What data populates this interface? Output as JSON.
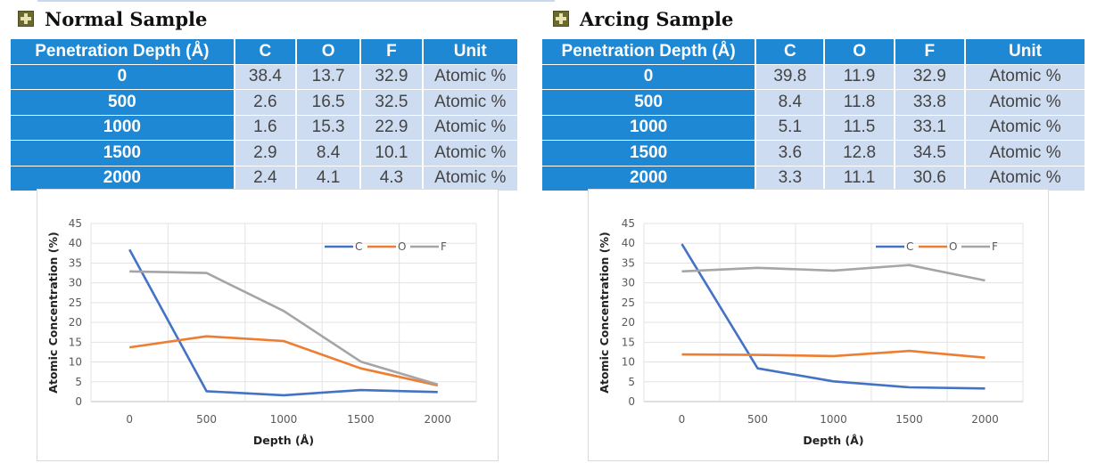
{
  "panels": [
    {
      "title": "Normal Sample",
      "table": {
        "headers": [
          "Penetration Depth (Å)",
          "C",
          "O",
          "F",
          "Unit"
        ],
        "rows": [
          [
            "0",
            "38.4",
            "13.7",
            "32.9",
            "Atomic %"
          ],
          [
            "500",
            "2.6",
            "16.5",
            "32.5",
            "Atomic %"
          ],
          [
            "1000",
            "1.6",
            "15.3",
            "22.9",
            "Atomic %"
          ],
          [
            "1500",
            "2.9",
            "8.4",
            "10.1",
            "Atomic %"
          ],
          [
            "2000",
            "2.4",
            "4.1",
            "4.3",
            "Atomic %"
          ]
        ]
      }
    },
    {
      "title": "Arcing Sample",
      "table": {
        "headers": [
          "Penetration Depth (Å)",
          "C",
          "O",
          "F",
          "Unit"
        ],
        "rows": [
          [
            "0",
            "39.8",
            "11.9",
            "32.9",
            "Atomic %"
          ],
          [
            "500",
            "8.4",
            "11.8",
            "33.8",
            "Atomic %"
          ],
          [
            "1000",
            "5.1",
            "11.5",
            "33.1",
            "Atomic %"
          ],
          [
            "1500",
            "3.6",
            "12.8",
            "34.5",
            "Atomic %"
          ],
          [
            "2000",
            "3.3",
            "11.1",
            "30.6",
            "Atomic %"
          ]
        ]
      }
    }
  ],
  "chart_data": [
    {
      "type": "line",
      "title": "",
      "xlabel": "Depth (Å)",
      "ylabel": "Atomic Concentration (%)",
      "x": [
        0,
        500,
        1000,
        1500,
        2000
      ],
      "ylim": [
        0,
        45
      ],
      "yticks": [
        0,
        5,
        10,
        15,
        20,
        25,
        30,
        35,
        40,
        45
      ],
      "grid": true,
      "legend_position": "top-right",
      "series": [
        {
          "name": "C",
          "color": "#4472c4",
          "values": [
            38.4,
            2.6,
            1.6,
            2.9,
            2.4
          ]
        },
        {
          "name": "O",
          "color": "#ed7d31",
          "values": [
            13.7,
            16.5,
            15.3,
            8.4,
            4.1
          ]
        },
        {
          "name": "F",
          "color": "#a5a5a5",
          "values": [
            32.9,
            32.5,
            22.9,
            10.1,
            4.3
          ]
        }
      ]
    },
    {
      "type": "line",
      "title": "",
      "xlabel": "Depth (Å)",
      "ylabel": "Atomic Concentration (%)",
      "x": [
        0,
        500,
        1000,
        1500,
        2000
      ],
      "ylim": [
        0,
        45
      ],
      "yticks": [
        0,
        5,
        10,
        15,
        20,
        25,
        30,
        35,
        40,
        45
      ],
      "grid": true,
      "legend_position": "top-right",
      "series": [
        {
          "name": "C",
          "color": "#4472c4",
          "values": [
            39.8,
            8.4,
            5.1,
            3.6,
            3.3
          ]
        },
        {
          "name": "O",
          "color": "#ed7d31",
          "values": [
            11.9,
            11.8,
            11.5,
            12.8,
            11.1
          ]
        },
        {
          "name": "F",
          "color": "#a5a5a5",
          "values": [
            32.9,
            33.8,
            33.1,
            34.5,
            30.6
          ]
        }
      ]
    }
  ]
}
